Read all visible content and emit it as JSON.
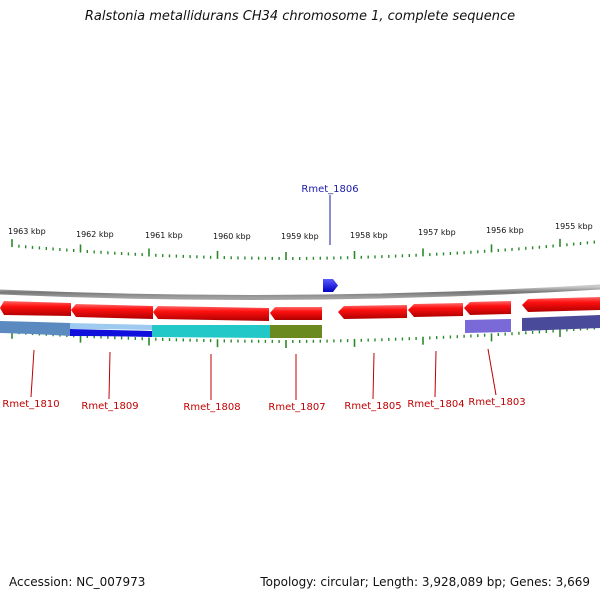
{
  "title": "Ralstonia metallidurans CH34 chromosome 1, complete sequence",
  "footer": {
    "accession": "Accession: NC_007973",
    "summary": "Topology: circular; Length: 3,928,089 bp; Genes: 3,669"
  },
  "colors": {
    "forward_gene": "#1010ee",
    "reverse_gene": "#ee0000",
    "backbone": "#8a8a8a",
    "ticks": "#2a8a2a",
    "forward_label": "#1a1aa8",
    "reverse_label": "#c00000"
  },
  "scale_labels": [
    "1963 kbp",
    "1962 kbp",
    "1961 kbp",
    "1960 kbp",
    "1959 kbp",
    "1958 kbp",
    "1957 kbp",
    "1956 kbp",
    "1955 kbp"
  ],
  "genes": [
    {
      "name": "Rmet_1806",
      "strand": "forward"
    },
    {
      "name": "Rmet_1810",
      "strand": "reverse"
    },
    {
      "name": "Rmet_1809",
      "strand": "reverse"
    },
    {
      "name": "Rmet_1808",
      "strand": "reverse"
    },
    {
      "name": "Rmet_1807",
      "strand": "reverse"
    },
    {
      "name": "Rmet_1805",
      "strand": "reverse"
    },
    {
      "name": "Rmet_1804",
      "strand": "reverse"
    },
    {
      "name": "Rmet_1803",
      "strand": "reverse"
    }
  ],
  "feature_track_colors": [
    "#5a8ac0",
    "#1010dd",
    "#22c8c8",
    "#6a8a20",
    "#7a6ad8",
    "#4a4a9a"
  ]
}
